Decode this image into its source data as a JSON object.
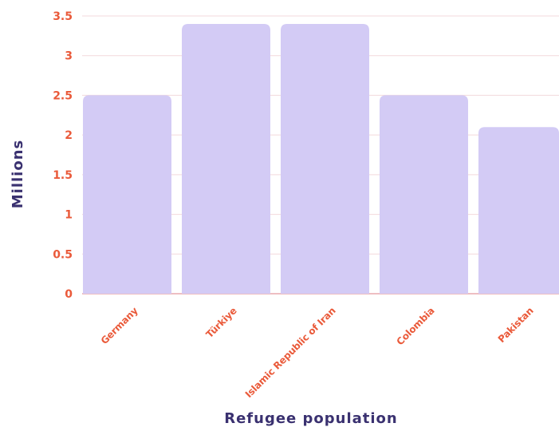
{
  "chart_data": {
    "type": "bar",
    "title": "",
    "xlabel": "Refugee population",
    "ylabel": "Millions",
    "categories": [
      "Germany",
      "Türkiye",
      "Islamic Republic of Iran",
      "Colombia",
      "Pakistan"
    ],
    "values": [
      2.5,
      3.4,
      3.4,
      2.5,
      2.1
    ],
    "ylim": [
      0,
      3.5
    ],
    "yticks": [
      0,
      0.5,
      1,
      1.5,
      2,
      2.5,
      3,
      3.5
    ],
    "ytick_labels": [
      "0",
      "0.5",
      "1",
      "1.5",
      "2",
      "2.5",
      "3",
      "3.5"
    ],
    "grid": true,
    "colors": {
      "bar": "#d3cbf5",
      "tick_text": "#ea5a3a",
      "axis_title": "#3a3170",
      "grid": "#f3d9dc"
    }
  }
}
